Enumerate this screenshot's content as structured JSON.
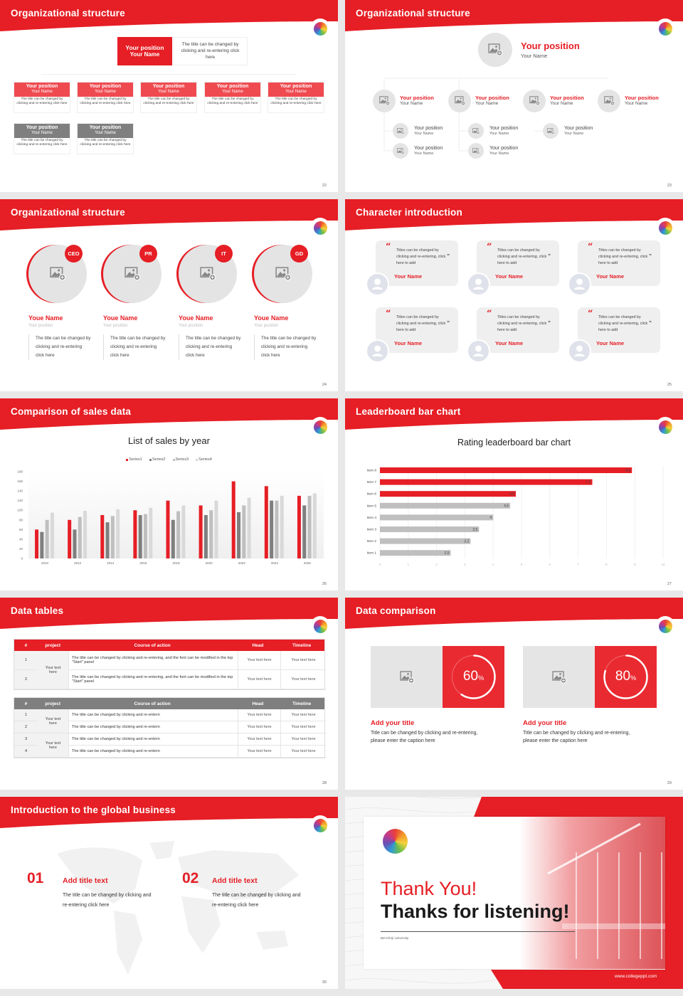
{
  "brand": {
    "accent": "#e61e25",
    "gray": "#7f7f7f",
    "light": "#e6e5e6"
  },
  "s22": {
    "title": "Organizational structure",
    "page": "22",
    "top": {
      "position": "Your position",
      "name": "Your Name",
      "desc": "The title can be changed by clicking and re-entering click here"
    },
    "red_cards": [
      {
        "position": "Your position",
        "name": "Your Name",
        "desc": "The title can be changed by clicking and re-entering click here"
      },
      {
        "position": "Your position",
        "name": "Your Name",
        "desc": "The title can be changed by clicking and re-entering click here"
      },
      {
        "position": "Your position",
        "name": "Your Name",
        "desc": "The title can be changed by clicking and re-entering click here"
      },
      {
        "position": "Your position",
        "name": "Your Name",
        "desc": "The title can be changed by clicking and re-entering click here"
      },
      {
        "position": "Your position",
        "name": "Your Name",
        "desc": "The title can be changed by clicking and re-entering click here"
      }
    ],
    "gray_cards": [
      {
        "position": "Your position",
        "name": "Your Name",
        "desc": "The title can be changed by clicking and re-entering click here"
      },
      {
        "position": "Your position",
        "name": "Your Name",
        "desc": "The title can be changed by clicking and re-entering click here"
      }
    ]
  },
  "s23": {
    "title": "Organizational structure",
    "page": "23",
    "top": {
      "position": "Your position",
      "name": "Your Name"
    },
    "level2": [
      {
        "position": "Your position",
        "name": "Your Name"
      },
      {
        "position": "Your position",
        "name": "Your Name"
      },
      {
        "position": "Your position",
        "name": "Your Name"
      },
      {
        "position": "Your position",
        "name": "Your Name"
      }
    ],
    "level3": [
      [
        {
          "position": "Your position",
          "name": "Your Name"
        },
        {
          "position": "Your position",
          "name": "Your Name"
        }
      ],
      [
        {
          "position": "Your position",
          "name": "Your Name"
        },
        {
          "position": "Your position",
          "name": "Your Name"
        }
      ],
      [
        {
          "position": "Your position",
          "name": "Your Name"
        }
      ],
      []
    ]
  },
  "s24": {
    "title": "Organizational structure",
    "page": "24",
    "people": [
      {
        "badge": "CEO",
        "name": "Youe Name",
        "position": "Your position",
        "desc": "The title can be changed by clicking and re-entering click here"
      },
      {
        "badge": "PR",
        "name": "Youe Name",
        "position": "Your position",
        "desc": "The title can be changed by clicking and re-entering click here"
      },
      {
        "badge": "IT",
        "name": "Youe Name",
        "position": "Your position",
        "desc": "The title can be changed by clicking and re-entering click here"
      },
      {
        "badge": "GD",
        "name": "Youe Name",
        "position": "Your position",
        "desc": "The title can be changed by clicking and re-entering click here"
      }
    ]
  },
  "s25": {
    "title": "Character introduction",
    "page": "25",
    "cards": [
      {
        "quote": "Titles can be changed by clicking and re-entering, click here to add",
        "name": "Your Name"
      },
      {
        "quote": "Titles can be changed by clicking and re-entering, click here to add",
        "name": "Your Name"
      },
      {
        "quote": "Titles can be changed by clicking and re-entering, click here to add",
        "name": "Your Name"
      },
      {
        "quote": "Titles can be changed by clicking and re-entering, click here to add",
        "name": "Your Name"
      },
      {
        "quote": "Titles can be changed by clicking and re-entering, click here to add",
        "name": "Your Name"
      },
      {
        "quote": "Titles can be changed by clicking and re-entering, click here to add",
        "name": "Your Name"
      }
    ]
  },
  "s26": {
    "title": "Comparison of sales data",
    "page": "26"
  },
  "s27": {
    "title": "Leaderboard bar chart",
    "page": "27"
  },
  "chart_data": [
    {
      "type": "bar",
      "title": "List of sales by year",
      "xlabel": "",
      "ylabel": "",
      "ylim": [
        0,
        180
      ],
      "yticks": [
        "0",
        "20",
        "40",
        "60",
        "80",
        "100",
        "120",
        "140",
        "160",
        "180"
      ],
      "grid": false,
      "legend": "top",
      "categories": [
        "2010",
        "2012",
        "2014",
        "2016",
        "2018",
        "2020",
        "2022",
        "2024",
        "2026"
      ],
      "series": [
        {
          "name": "Series1",
          "color": "#e61e25",
          "values": [
            60,
            80,
            90,
            100,
            120,
            110,
            160,
            150,
            130
          ]
        },
        {
          "name": "Series2",
          "color": "#7f7f7f",
          "values": [
            55,
            60,
            75,
            90,
            80,
            90,
            96,
            120,
            110
          ]
        },
        {
          "name": "Series3",
          "color": "#bfbfbf",
          "values": [
            80,
            86,
            88,
            92,
            98,
            100,
            110,
            120,
            130
          ]
        },
        {
          "name": "Series4",
          "color": "#d9d9d9",
          "values": [
            95,
            99,
            102,
            105,
            110,
            120,
            126,
            130,
            135
          ]
        }
      ]
    },
    {
      "type": "bar",
      "orientation": "horizontal",
      "title": "Rating leaderboard bar chart",
      "xlim": [
        0,
        10
      ],
      "xticks": [
        "0",
        "1",
        "2",
        "3",
        "4",
        "5",
        "6",
        "7",
        "8",
        "9",
        "10"
      ],
      "grid": true,
      "categories": [
        "Item 8",
        "Item 7",
        "Item 6",
        "Item 5",
        "Item 4",
        "Item 3",
        "Item 2",
        "Item 1"
      ],
      "values": [
        8.9,
        7.5,
        4.8,
        4.6,
        4,
        3.5,
        3.2,
        2.5
      ],
      "colors": [
        "#e61e25",
        "#e61e25",
        "#e61e25",
        "#bfbfbf",
        "#bfbfbf",
        "#bfbfbf",
        "#bfbfbf",
        "#bfbfbf"
      ]
    }
  ],
  "s28": {
    "title": "Data tables",
    "page": "28",
    "table1": {
      "headers": [
        "#",
        "project",
        "Course of action",
        "Head",
        "Timeline"
      ],
      "project": [
        "Your text here"
      ],
      "rows": [
        {
          "num": "1",
          "action": "The title can be changed by clicking and re-entering, and the font can be modified in the top \"Start\" panel",
          "head": "Your text here",
          "timeline": "Your text here"
        },
        {
          "num": "2",
          "action": "The title can be changed by clicking and re-entering, and the font can be modified in the top \"Start\" panel",
          "head": "Your text here",
          "timeline": "Your text here"
        }
      ]
    },
    "table2": {
      "headers": [
        "#",
        "project",
        "Course of action",
        "Head",
        "Timeline"
      ],
      "project": [
        "Your text here",
        "Your text here"
      ],
      "rows": [
        {
          "num": "1",
          "action": "The title can be changed by clicking and re-entern",
          "head": "Your text here",
          "timeline": "Your text here"
        },
        {
          "num": "2",
          "action": "The title can be changed by clicking and re-entern",
          "head": "Your text here",
          "timeline": "Your text here"
        },
        {
          "num": "3",
          "action": "The title can be changed by clicking and re-entern",
          "head": "Your text here",
          "timeline": "Your text here"
        },
        {
          "num": "4",
          "action": "The title can be changed by clicking and re-entern",
          "head": "Your text here",
          "timeline": "Your text here"
        }
      ]
    }
  },
  "s29": {
    "title": "Data comparison",
    "page": "29",
    "items": [
      {
        "value": "60",
        "unit": "%",
        "fraction": 0.6,
        "title": "Add your title",
        "desc": "Title can be changed by clicking and re-entering, please enter the caption here"
      },
      {
        "value": "80",
        "unit": "%",
        "fraction": 0.8,
        "title": "Add your title",
        "desc": "Title can be changed by clicking and re-entering, please enter the caption here"
      }
    ]
  },
  "s30": {
    "title": "Introduction to the global business",
    "page": "30",
    "items": [
      {
        "num": "01",
        "title": "Add title text",
        "desc": "The title can be changed by clicking and re-entering click here"
      },
      {
        "num": "02",
        "title": "Add title text",
        "desc": "The title can be changed by clicking and re-entering click here"
      }
    ]
  },
  "s31": {
    "thank": "Thank You!",
    "thanks": "Thanks for listening!",
    "university": "Bet Kfurji University",
    "website": "www.collegeppt.com"
  }
}
